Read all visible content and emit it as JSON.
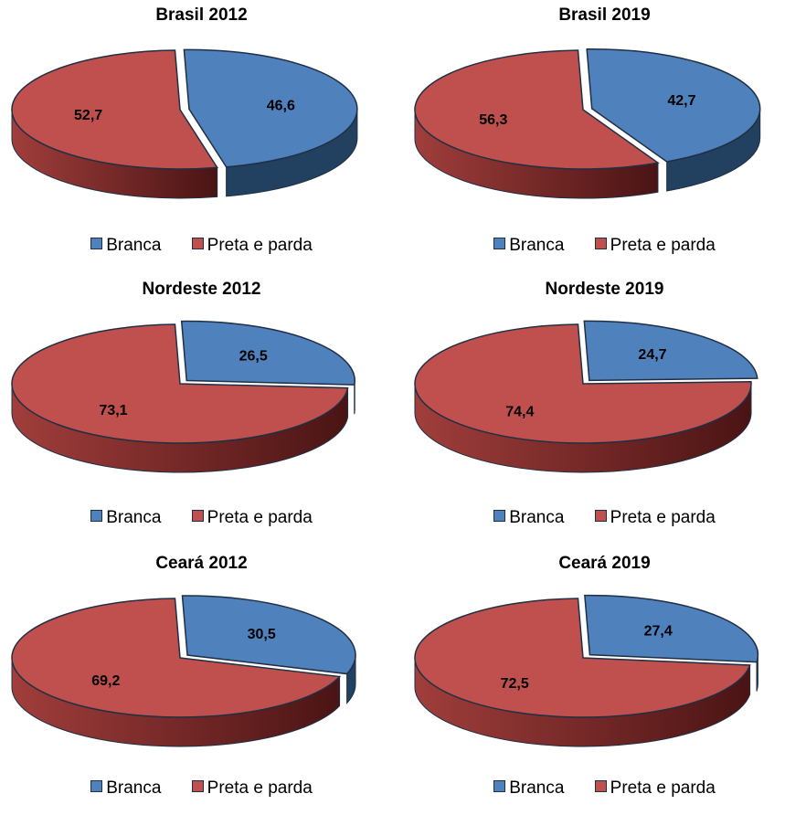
{
  "colors": {
    "branca": "#4F81BD",
    "branca_side": "#22405f",
    "preta_parda": "#C0504D",
    "preta_parda_side_light": "#a03e3b",
    "preta_parda_side_dark": "#4a1414",
    "outline": "#1f2f44"
  },
  "legend": [
    {
      "label": "Branca",
      "color": "#4F81BD"
    },
    {
      "label": "Preta e parda",
      "color": "#C0504D"
    }
  ],
  "chart_data": [
    {
      "type": "pie",
      "title": "Brasil 2012",
      "categories": [
        "Branca",
        "Preta e parda"
      ],
      "values": [
        46.6,
        52.7
      ],
      "value_labels": [
        "46,6",
        "52,7"
      ],
      "legend_position": "bottom",
      "exploded": "Branca"
    },
    {
      "type": "pie",
      "title": "Brasil 2019",
      "categories": [
        "Branca",
        "Preta e parda"
      ],
      "values": [
        42.7,
        56.3
      ],
      "value_labels": [
        "42,7",
        "56,3"
      ],
      "legend_position": "bottom",
      "exploded": "Branca"
    },
    {
      "type": "pie",
      "title": "Nordeste 2012",
      "categories": [
        "Branca",
        "Preta e parda"
      ],
      "values": [
        26.5,
        73.1
      ],
      "value_labels": [
        "26,5",
        "73,1"
      ],
      "legend_position": "bottom",
      "exploded": "Branca"
    },
    {
      "type": "pie",
      "title": "Nordeste 2019",
      "categories": [
        "Branca",
        "Preta e parda"
      ],
      "values": [
        24.7,
        74.4
      ],
      "value_labels": [
        "24,7",
        "74,4"
      ],
      "legend_position": "bottom",
      "exploded": "Branca"
    },
    {
      "type": "pie",
      "title": "Ceará 2012",
      "categories": [
        "Branca",
        "Preta e parda"
      ],
      "values": [
        30.5,
        69.2
      ],
      "value_labels": [
        "30,5",
        "69,2"
      ],
      "legend_position": "bottom",
      "exploded": "Branca"
    },
    {
      "type": "pie",
      "title": "Ceará 2019",
      "categories": [
        "Branca",
        "Preta e parda"
      ],
      "values": [
        27.4,
        72.5
      ],
      "value_labels": [
        "27,4",
        "72,5"
      ],
      "legend_position": "bottom",
      "exploded": "Branca"
    }
  ]
}
